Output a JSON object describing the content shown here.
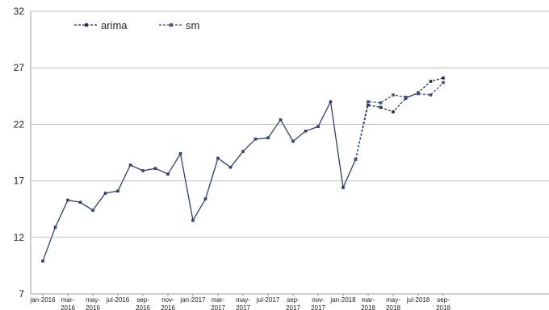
{
  "chart_data": {
    "type": "line",
    "title": "",
    "xlabel": "",
    "ylabel": "",
    "ylim": [
      7,
      32
    ],
    "yticks": [
      7,
      12,
      17,
      22,
      27,
      32
    ],
    "grid": "horizontal",
    "legend_position": "top-left",
    "x": [
      "jan-2016",
      "feb-2016",
      "mar-2016",
      "apr-2016",
      "may-2016",
      "jun-2016",
      "jul-2016",
      "aug-2016",
      "sep-2016",
      "oct-2016",
      "nov-2016",
      "dec-2016",
      "jan-2017",
      "feb-2017",
      "mar-2017",
      "apr-2017",
      "may-2017",
      "jun-2017",
      "jul-2017",
      "aug-2017",
      "sep-2017",
      "oct-2017",
      "nov-2017",
      "dec-2017",
      "jan-2018",
      "feb-2018",
      "mar-2018",
      "apr-2018",
      "may-2018",
      "jun-2018",
      "jul-2018",
      "aug-2018",
      "sep-2018"
    ],
    "xtick_labels": [
      {
        "index": 0,
        "lines": [
          "jan-2016"
        ]
      },
      {
        "index": 2,
        "lines": [
          "mar-",
          "2016"
        ]
      },
      {
        "index": 4,
        "lines": [
          "may-",
          "2016"
        ]
      },
      {
        "index": 6,
        "lines": [
          "jul-2016"
        ]
      },
      {
        "index": 8,
        "lines": [
          "sep-",
          "2016"
        ]
      },
      {
        "index": 10,
        "lines": [
          "nov-",
          "2016"
        ]
      },
      {
        "index": 12,
        "lines": [
          "jan-2017"
        ]
      },
      {
        "index": 14,
        "lines": [
          "mar-",
          "2017"
        ]
      },
      {
        "index": 16,
        "lines": [
          "may-",
          "2017"
        ]
      },
      {
        "index": 18,
        "lines": [
          "jul-2017"
        ]
      },
      {
        "index": 20,
        "lines": [
          "sep-",
          "2017"
        ]
      },
      {
        "index": 22,
        "lines": [
          "nov-",
          "2017"
        ]
      },
      {
        "index": 24,
        "lines": [
          "jan-2018"
        ]
      },
      {
        "index": 26,
        "lines": [
          "mar-",
          "2018"
        ]
      },
      {
        "index": 28,
        "lines": [
          "may-",
          "2018"
        ]
      },
      {
        "index": 30,
        "lines": [
          "jul-2018"
        ]
      },
      {
        "index": 32,
        "lines": [
          "sep-",
          "2018"
        ]
      }
    ],
    "series": [
      {
        "key": "actual",
        "style": "solid",
        "color": "#2b3f78",
        "values": [
          9.9,
          12.9,
          15.3,
          15.1,
          14.4,
          15.9,
          16.1,
          18.4,
          17.9,
          18.1,
          17.6,
          19.4,
          13.5,
          15.4,
          19.0,
          18.2,
          19.6,
          20.7,
          20.8,
          22.4,
          20.5,
          21.4,
          21.8,
          24.0,
          16.4,
          18.9,
          null,
          null,
          null,
          null,
          null,
          null,
          null
        ]
      },
      {
        "key": "arima",
        "name": "arima",
        "style": "dashed",
        "color": "#1f2f66",
        "values": [
          null,
          null,
          null,
          null,
          null,
          null,
          null,
          null,
          null,
          null,
          null,
          null,
          null,
          null,
          null,
          null,
          null,
          null,
          null,
          null,
          null,
          null,
          null,
          null,
          null,
          18.9,
          23.7,
          23.5,
          23.1,
          24.3,
          24.8,
          25.8,
          26.1
        ]
      },
      {
        "key": "sm",
        "name": "sm",
        "style": "dashed",
        "color": "#3a4f8c",
        "values": [
          null,
          null,
          null,
          null,
          null,
          null,
          null,
          null,
          null,
          null,
          null,
          null,
          null,
          null,
          null,
          null,
          null,
          null,
          null,
          null,
          null,
          null,
          null,
          null,
          null,
          18.9,
          24.0,
          23.9,
          24.6,
          24.4,
          24.7,
          24.6,
          25.7
        ]
      }
    ]
  }
}
